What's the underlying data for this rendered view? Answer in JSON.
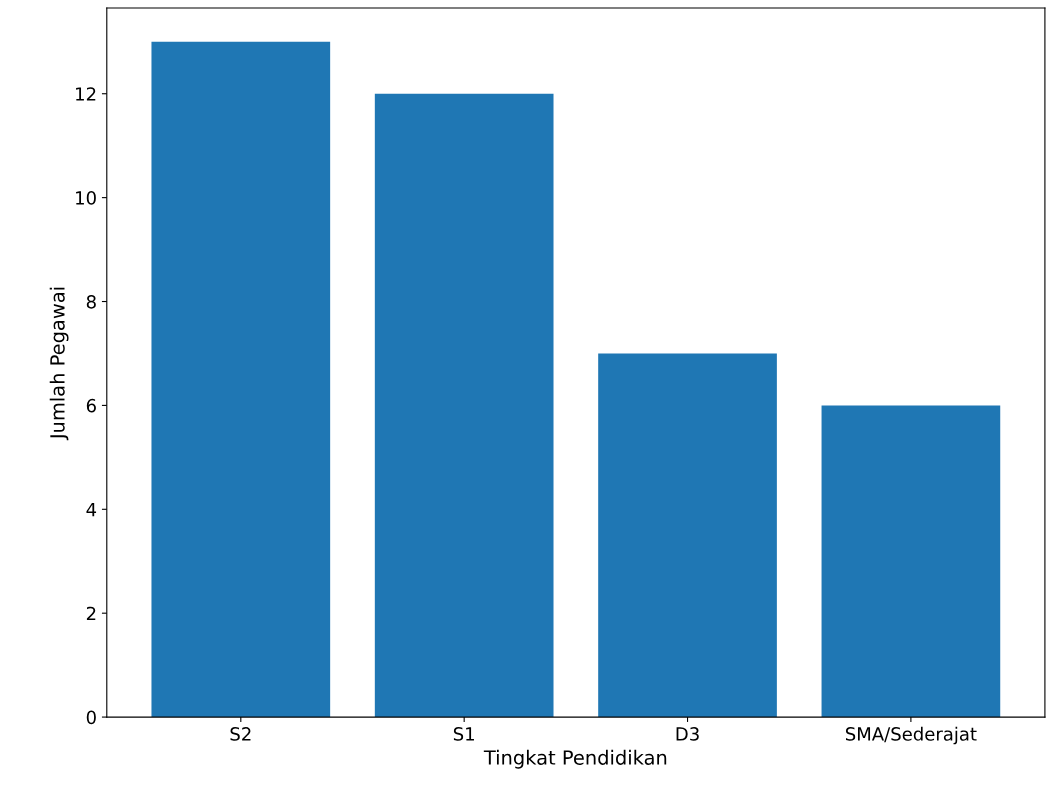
{
  "chart_data": {
    "type": "bar",
    "xlabel": "Tingkat Pendidikan",
    "ylabel": "Jumlah Pegawai",
    "categories": [
      "S2",
      "S1",
      "D3",
      "SMA/Sederajat"
    ],
    "values": [
      13,
      12,
      7,
      6
    ],
    "color": "#1f77b4",
    "ylim": [
      0,
      13.65
    ],
    "yticks": [
      0,
      2,
      4,
      6,
      8,
      10,
      12
    ],
    "grid": false
  }
}
